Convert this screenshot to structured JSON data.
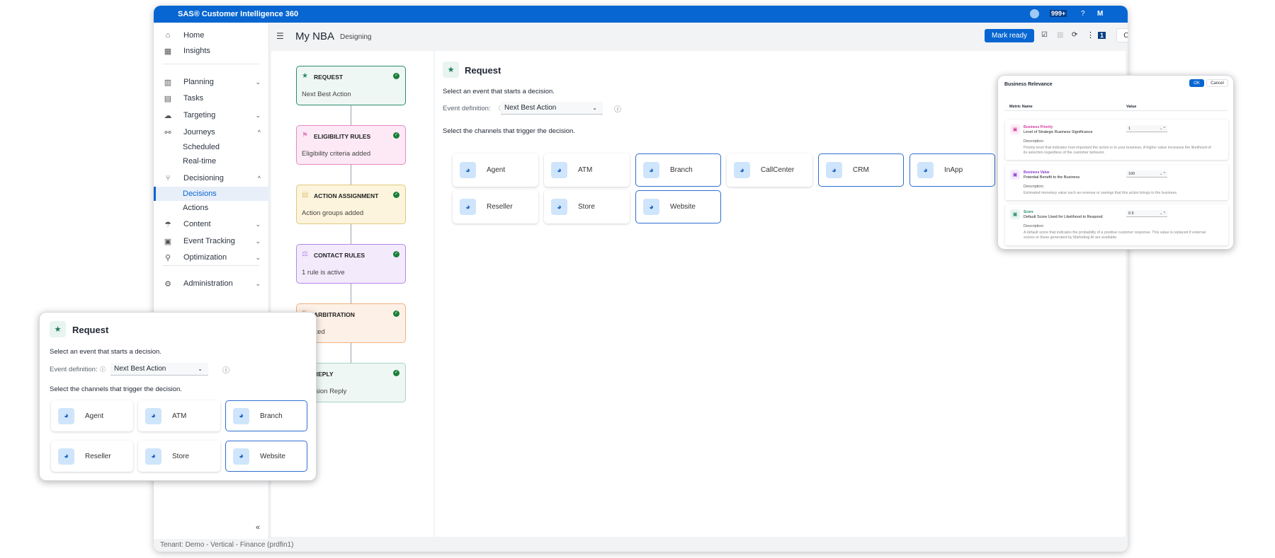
{
  "app": {
    "title": "SAS® Customer Intelligence 360",
    "notifications": "999+",
    "help": "?",
    "user_initial": "M"
  },
  "sidebar": {
    "items": [
      {
        "label": "Home",
        "icon": "home-icon"
      },
      {
        "label": "Insights",
        "icon": "insights-icon"
      },
      {
        "label": "Planning",
        "icon": "planning-icon"
      },
      {
        "label": "Tasks",
        "icon": "tasks-icon"
      },
      {
        "label": "Targeting",
        "icon": "targeting-icon"
      },
      {
        "label": "Journeys",
        "icon": "journeys-icon"
      },
      {
        "label": "Scheduled"
      },
      {
        "label": "Real-time"
      },
      {
        "label": "Decisioning",
        "icon": "decisioning-icon"
      },
      {
        "label": "Decisions"
      },
      {
        "label": "Actions"
      },
      {
        "label": "Content",
        "icon": "content-icon"
      },
      {
        "label": "Event Tracking",
        "icon": "event-tracking-icon"
      },
      {
        "label": "Optimization",
        "icon": "optimization-icon"
      },
      {
        "label": "Administration",
        "icon": "gear-icon"
      }
    ],
    "collapse": "«",
    "tenant": "Tenant: Demo - Vertical - Finance (prdfin1)"
  },
  "header": {
    "title": "My NBA",
    "status": "Designing",
    "mark_ready": "Mark ready",
    "badge": "1",
    "close": "Close"
  },
  "flow": {
    "nodes": [
      {
        "title": "REQUEST",
        "subtitle": "Next Best Action",
        "color": "#2e8a72",
        "bg": "#eef7f4"
      },
      {
        "title": "ELIGIBILITY RULES",
        "subtitle": "Eligibility criteria added",
        "color": "#e58ac4",
        "bg": "#fce9f5"
      },
      {
        "title": "ACTION ASSIGNMENT",
        "subtitle": "Action groups added",
        "color": "#e2c97c",
        "bg": "#fcf4dc"
      },
      {
        "title": "CONTACT RULES",
        "subtitle": "1 rule is active",
        "color": "#b48ae6",
        "bg": "#f3eafc"
      },
      {
        "title": "ARBITRATION",
        "subtitle": "Ranked",
        "color": "#f0b07e",
        "bg": "#fdf0e6"
      },
      {
        "title": "REPLY",
        "subtitle": "Decision Reply",
        "color": "#a9d2c3",
        "bg": "#eef7f4"
      }
    ]
  },
  "request": {
    "title": "Request",
    "event_prompt": "Select an event that starts a decision.",
    "event_label": "Event definition:",
    "event_value": "Next Best Action",
    "channels_prompt": "Select the channels that trigger the decision.",
    "channels": [
      {
        "label": "Agent",
        "selected": false
      },
      {
        "label": "ATM",
        "selected": false
      },
      {
        "label": "Branch",
        "selected": true
      },
      {
        "label": "CallCenter",
        "selected": false
      },
      {
        "label": "CRM",
        "selected": true
      },
      {
        "label": "InApp",
        "selected": true
      },
      {
        "label": "Reseller",
        "selected": false
      },
      {
        "label": "Store",
        "selected": false
      },
      {
        "label": "Website",
        "selected": true
      }
    ]
  },
  "business_relevance": {
    "title": "Business Relevance",
    "ok": "OK",
    "cancel": "Cancel",
    "col_metric": "Metric Name",
    "col_value": "Value",
    "desc_label": "Description:",
    "metrics": [
      {
        "category": "Business Priority",
        "name": "Level of Strategic Business Significance",
        "value": "1",
        "description": "Priority level that indicates how important the action is to your business. A higher value increases the likelihood of its selection regardless of the customer behavior.",
        "color": "#d63aa0"
      },
      {
        "category": "Business Value",
        "name": "Potential Benefit to the Business",
        "value": "100",
        "description": "Estimated monetary value such as revenue or savings that this action brings to the business.",
        "color": "#8a3ad6"
      },
      {
        "category": "Score",
        "name": "Default Score Used for Likelihood to Respond",
        "value": "0.5",
        "description": "A default score that indicates the probability of a positive customer response. This value is replaced if external scores or those generated by Marketing AI are available.",
        "color": "#1f8a6a"
      }
    ]
  }
}
